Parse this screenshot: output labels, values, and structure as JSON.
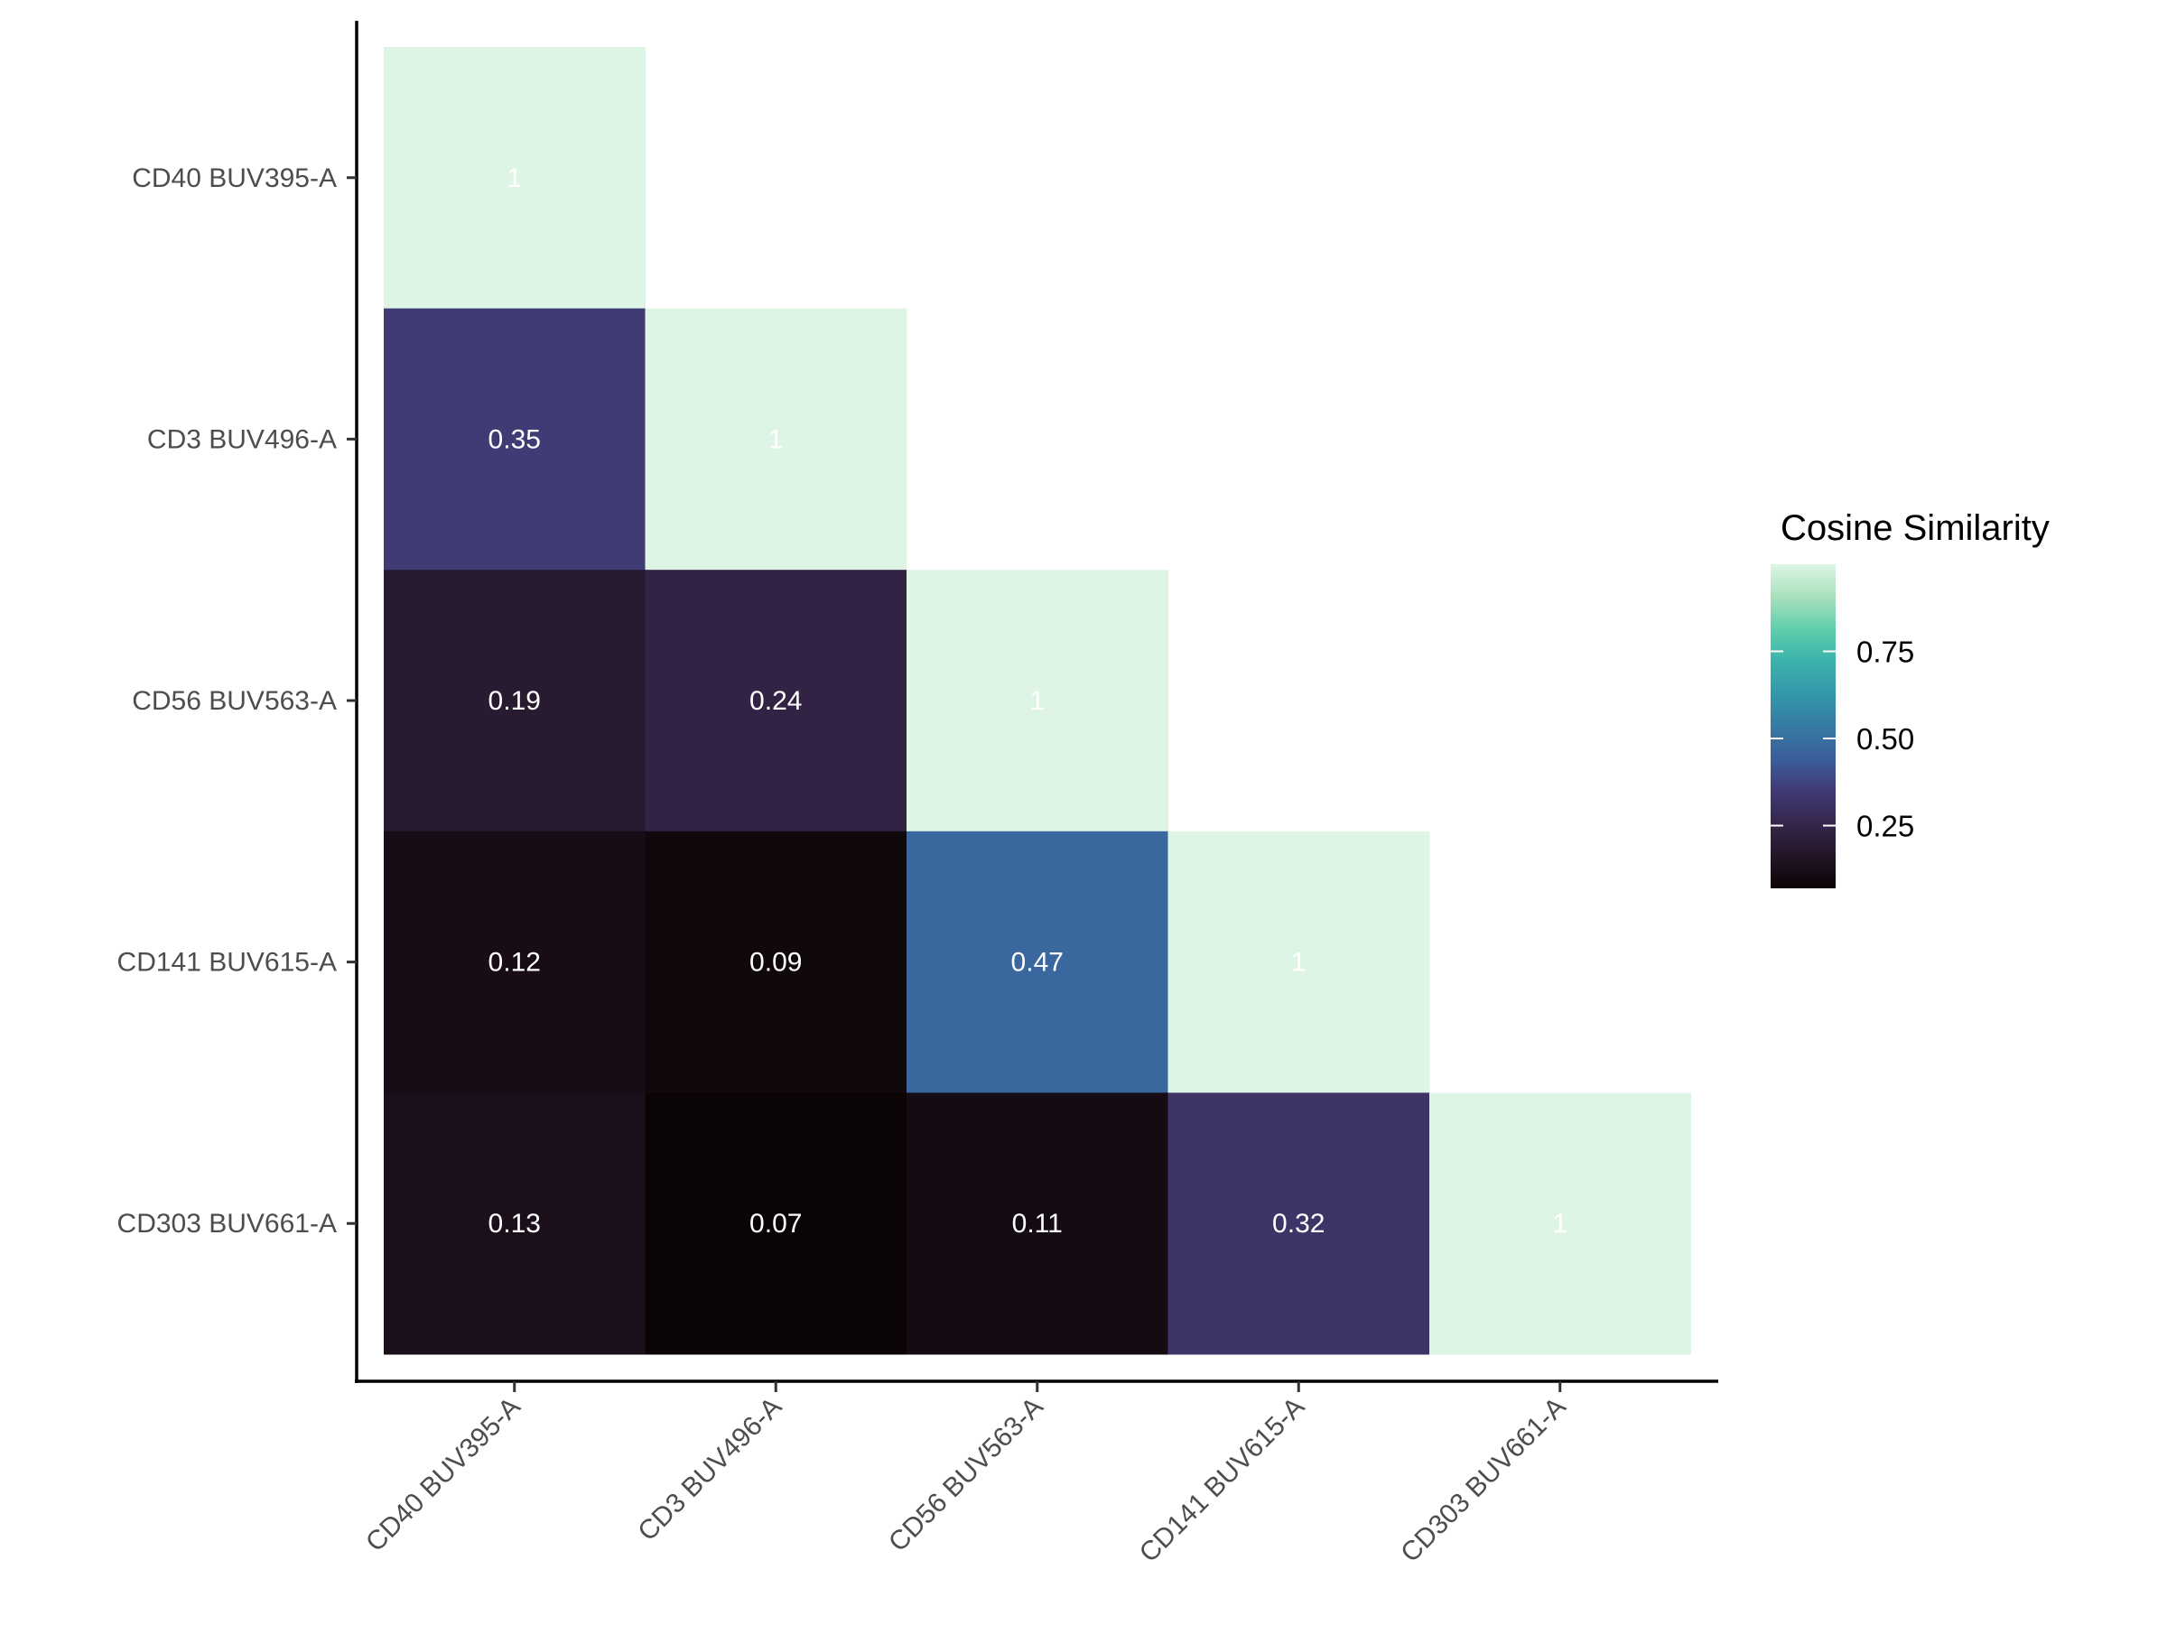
{
  "chart_data": {
    "type": "heatmap",
    "x_categories": [
      "CD40 BUV395-A",
      "CD3 BUV496-A",
      "CD56 BUV563-A",
      "CD141 BUV615-A",
      "CD303 BUV661-A"
    ],
    "y_categories": [
      "CD40 BUV395-A",
      "CD3 BUV496-A",
      "CD56 BUV563-A",
      "CD141 BUV615-A",
      "CD303 BUV661-A"
    ],
    "cells": [
      {
        "x": "CD40 BUV395-A",
        "y": "CD40 BUV395-A",
        "value": 1,
        "label": "1"
      },
      {
        "x": "CD40 BUV395-A",
        "y": "CD3 BUV496-A",
        "value": 0.35,
        "label": "0.35"
      },
      {
        "x": "CD3 BUV496-A",
        "y": "CD3 BUV496-A",
        "value": 1,
        "label": "1"
      },
      {
        "x": "CD40 BUV395-A",
        "y": "CD56 BUV563-A",
        "value": 0.19,
        "label": "0.19"
      },
      {
        "x": "CD3 BUV496-A",
        "y": "CD56 BUV563-A",
        "value": 0.24,
        "label": "0.24"
      },
      {
        "x": "CD56 BUV563-A",
        "y": "CD56 BUV563-A",
        "value": 1,
        "label": "1"
      },
      {
        "x": "CD40 BUV395-A",
        "y": "CD141 BUV615-A",
        "value": 0.12,
        "label": "0.12"
      },
      {
        "x": "CD3 BUV496-A",
        "y": "CD141 BUV615-A",
        "value": 0.09,
        "label": "0.09"
      },
      {
        "x": "CD56 BUV563-A",
        "y": "CD141 BUV615-A",
        "value": 0.47,
        "label": "0.47"
      },
      {
        "x": "CD141 BUV615-A",
        "y": "CD141 BUV615-A",
        "value": 1,
        "label": "1"
      },
      {
        "x": "CD40 BUV395-A",
        "y": "CD303 BUV661-A",
        "value": 0.13,
        "label": "0.13"
      },
      {
        "x": "CD3 BUV496-A",
        "y": "CD303 BUV661-A",
        "value": 0.07,
        "label": "0.07"
      },
      {
        "x": "CD56 BUV563-A",
        "y": "CD303 BUV661-A",
        "value": 0.11,
        "label": "0.11"
      },
      {
        "x": "CD141 BUV615-A",
        "y": "CD303 BUV661-A",
        "value": 0.32,
        "label": "0.32"
      },
      {
        "x": "CD303 BUV661-A",
        "y": "CD303 BUV661-A",
        "value": 1,
        "label": "1"
      }
    ],
    "title": "",
    "xlabel": "",
    "ylabel": "",
    "legend": {
      "title": "Cosine Similarity",
      "position": "right",
      "ticks": [
        "0.25",
        "0.50",
        "0.75"
      ],
      "tick_values": [
        0.25,
        0.5,
        0.75
      ],
      "range": [
        0.07,
        1
      ]
    },
    "colorscale": [
      "#0b0405",
      "#231526",
      "#35264c",
      "#403a75",
      "#3b5e9c",
      "#357ba2",
      "#3497a9",
      "#3ab3ab",
      "#60ceac",
      "#a8e1bc",
      "#def5e5"
    ],
    "grid": false
  }
}
